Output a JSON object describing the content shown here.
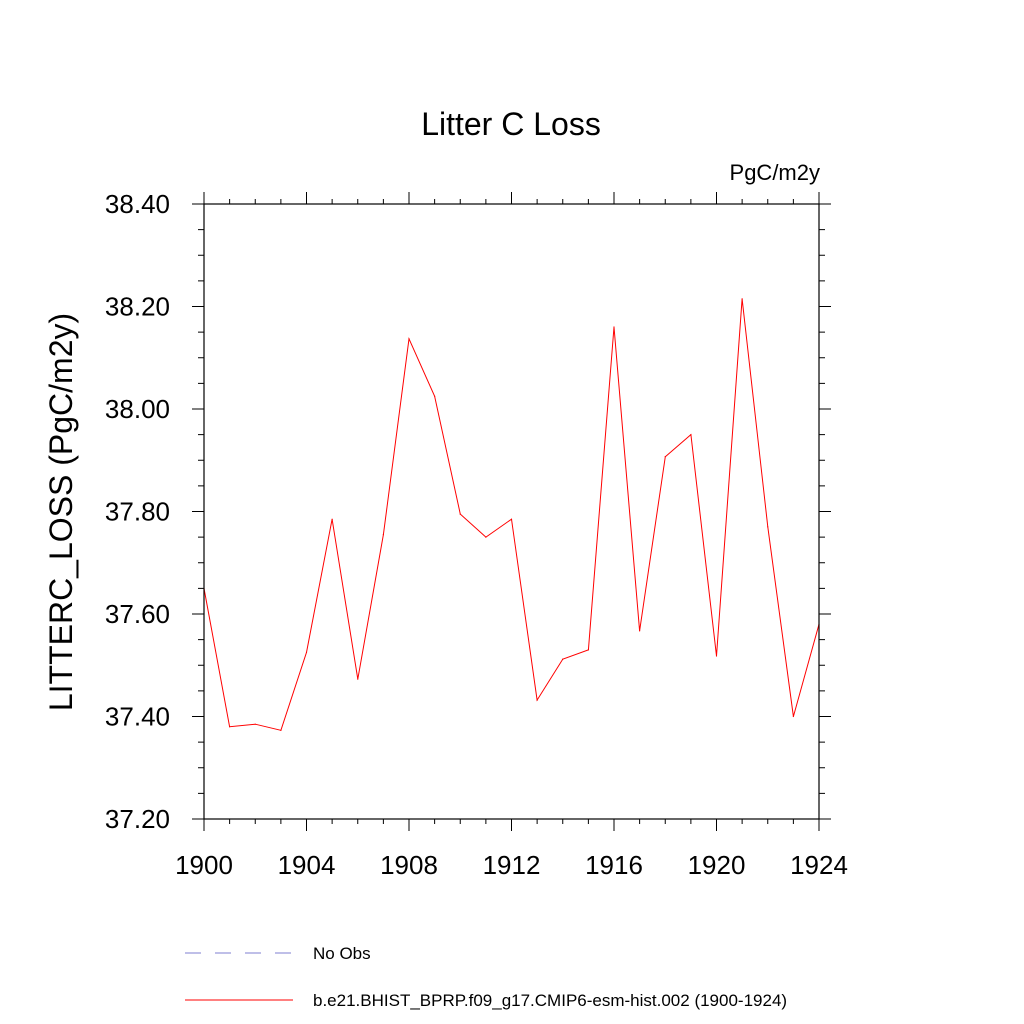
{
  "chart_data": {
    "type": "line",
    "title": "Litter C Loss",
    "units_label": "PgC/m2y",
    "ylabel": "LITTERC_LOSS  (PgC/m2y)",
    "xlabel": "",
    "xlim": [
      1900,
      1924
    ],
    "ylim": [
      37.2,
      38.4
    ],
    "x_ticks": [
      1900,
      1904,
      1908,
      1912,
      1916,
      1920,
      1924
    ],
    "x_tick_labels": [
      "1900",
      "1904",
      "1908",
      "1912",
      "1916",
      "1920",
      "1924"
    ],
    "y_ticks": [
      37.2,
      37.4,
      37.6,
      37.8,
      38.0,
      38.2,
      38.4
    ],
    "y_tick_labels": [
      "37.20",
      "37.40",
      "37.60",
      "37.80",
      "38.00",
      "38.20",
      "38.40"
    ],
    "grid": false,
    "legend_position": "bottom",
    "series": [
      {
        "name": "b.e21.BHIST_BPRP.f09_g17.CMIP6-esm-hist.002 (1900-1924)",
        "color": "#ff0000",
        "style": "solid",
        "x": [
          1900,
          1901,
          1902,
          1903,
          1904,
          1905,
          1906,
          1907,
          1908,
          1909,
          1910,
          1911,
          1912,
          1913,
          1914,
          1915,
          1916,
          1917,
          1918,
          1919,
          1920,
          1921,
          1922,
          1923,
          1924
        ],
        "values": [
          37.65,
          37.38,
          37.385,
          37.373,
          37.525,
          37.785,
          37.473,
          37.755,
          38.137,
          38.025,
          37.795,
          37.75,
          37.785,
          37.432,
          37.512,
          37.53,
          38.16,
          37.567,
          37.907,
          37.95,
          37.518,
          38.215,
          37.77,
          37.4,
          37.58
        ]
      },
      {
        "name": "No Obs",
        "color": "#7f7fd0",
        "style": "dashed",
        "x": [],
        "values": []
      }
    ]
  }
}
